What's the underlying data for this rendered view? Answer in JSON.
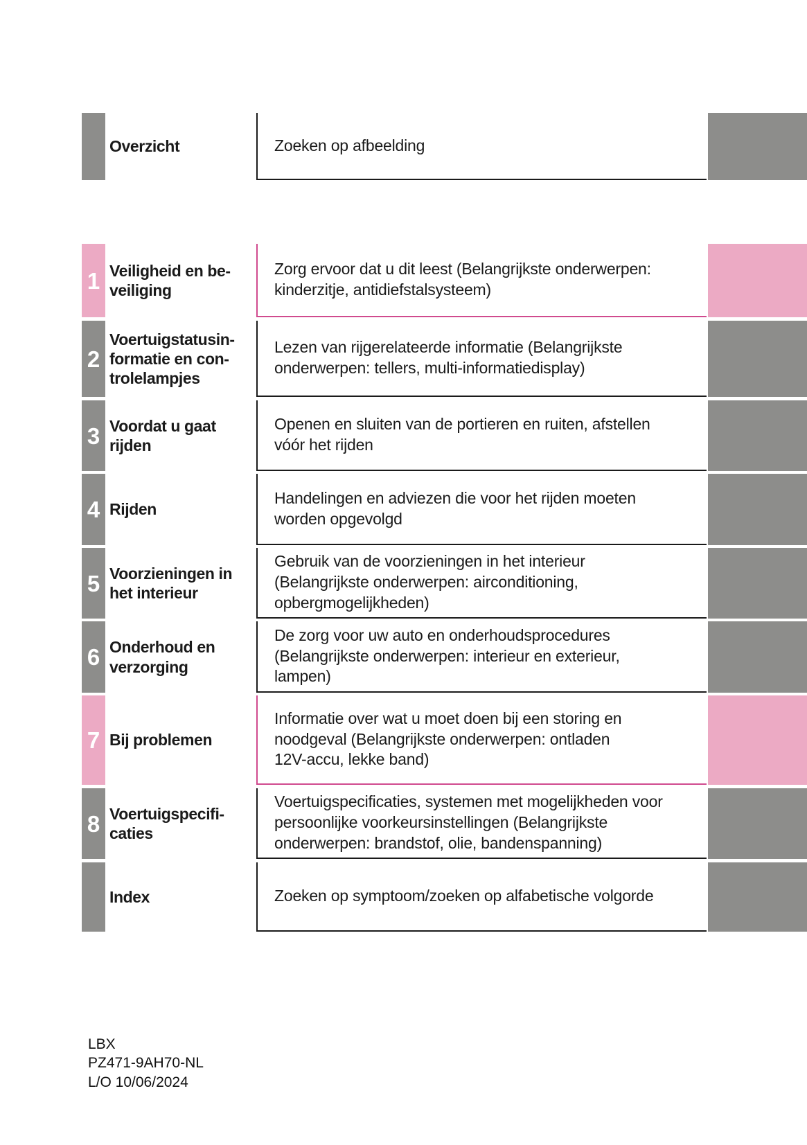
{
  "colors": {
    "tab_gray": "#8d8d8b",
    "tab_pink": "#ecaac4",
    "pink_rule": "#d04a8e",
    "dark_rule": "#1a1a1a",
    "text": "#1a1a1a"
  },
  "rows": [
    {
      "number": "",
      "label": "Overzicht",
      "description": "Zoeken op afbeelding",
      "accent": "gray"
    },
    {
      "number": "1",
      "label": "Veiligheid en be-\nveiliging",
      "description": "Zorg ervoor dat u dit leest (Belangrijkste onderwerpen:\nkinderzitje, antidiefstalsysteem)",
      "accent": "pink"
    },
    {
      "number": "2",
      "label": "Voertuigstatusin-\nformatie en con-\ntrolelampjes",
      "description": "Lezen van rijgerelateerde informatie (Belangrijkste\nonderwerpen: tellers, multi-informatiedisplay)",
      "accent": "gray"
    },
    {
      "number": "3",
      "label": "Voordat u gaat\nrijden",
      "description": "Openen en sluiten van de portieren en ruiten, afstellen\nvóór het rijden",
      "accent": "gray"
    },
    {
      "number": "4",
      "label": "Rijden",
      "description": "Handelingen en adviezen die voor het rijden moeten\nworden opgevolgd",
      "accent": "gray"
    },
    {
      "number": "5",
      "label": "Voorzieningen in\nhet interieur",
      "description": "Gebruik van de voorzieningen in het interieur\n(Belangrijkste onderwerpen: airconditioning,\nopbergmogelijkheden)",
      "accent": "gray"
    },
    {
      "number": "6",
      "label": "Onderhoud en\nverzorging",
      "description": "De zorg voor uw auto en onderhoudsprocedures\n(Belangrijkste onderwerpen: interieur en exterieur,\nlampen)",
      "accent": "gray"
    },
    {
      "number": "7",
      "label": "Bij problemen",
      "description": "Informatie over wat u moet doen bij een storing en\nnoodgeval (Belangrijkste onderwerpen: ontladen\n12V-accu, lekke band)",
      "accent": "pink"
    },
    {
      "number": "8",
      "label": "Voertuigspecifi-\ncaties",
      "description": "Voertuigspecificaties, systemen met mogelijkheden voor\npersoonlijke voorkeursinstellingen (Belangrijkste\nonderwerpen: brandstof, olie, bandenspanning)",
      "accent": "gray"
    },
    {
      "number": "",
      "label": "Index",
      "description": "Zoeken op symptoom/zoeken op alfabetische volgorde",
      "accent": "gray"
    }
  ],
  "footer": {
    "model": "LBX",
    "part_number": "PZ471-9AH70-NL",
    "layout_date": "L/O 10/06/2024"
  }
}
